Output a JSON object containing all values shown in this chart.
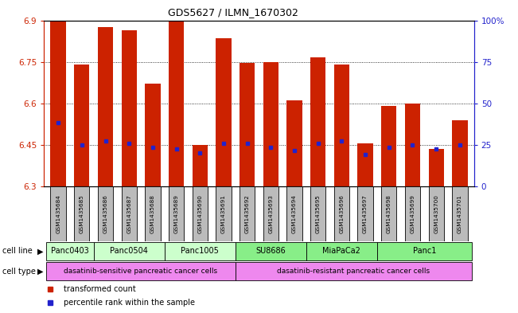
{
  "title": "GDS5627 / ILMN_1670302",
  "samples": [
    "GSM1435684",
    "GSM1435685",
    "GSM1435686",
    "GSM1435687",
    "GSM1435688",
    "GSM1435689",
    "GSM1435690",
    "GSM1435691",
    "GSM1435692",
    "GSM1435693",
    "GSM1435694",
    "GSM1435695",
    "GSM1435696",
    "GSM1435697",
    "GSM1435698",
    "GSM1435699",
    "GSM1435700",
    "GSM1435701"
  ],
  "bar_values": [
    6.895,
    6.74,
    6.875,
    6.865,
    6.67,
    6.905,
    6.45,
    6.835,
    6.745,
    6.75,
    6.61,
    6.765,
    6.74,
    6.455,
    6.59,
    6.6,
    6.435,
    6.54
  ],
  "blue_marker_values": [
    6.53,
    6.45,
    6.465,
    6.455,
    6.44,
    6.435,
    6.42,
    6.455,
    6.455,
    6.44,
    6.43,
    6.455,
    6.465,
    6.415,
    6.44,
    6.45,
    6.435,
    6.45
  ],
  "ymin": 6.3,
  "ymax": 6.9,
  "yticks_left": [
    6.3,
    6.45,
    6.6,
    6.75,
    6.9
  ],
  "yticks_right": [
    0,
    25,
    50,
    75,
    100
  ],
  "cell_lines": [
    {
      "label": "Panc0403",
      "start": 0,
      "end": 2,
      "color": "#ccffcc"
    },
    {
      "label": "Panc0504",
      "start": 2,
      "end": 5,
      "color": "#ccffcc"
    },
    {
      "label": "Panc1005",
      "start": 5,
      "end": 8,
      "color": "#ccffcc"
    },
    {
      "label": "SU8686",
      "start": 8,
      "end": 11,
      "color": "#88ee88"
    },
    {
      "label": "MiaPaCa2",
      "start": 11,
      "end": 14,
      "color": "#88ee88"
    },
    {
      "label": "Panc1",
      "start": 14,
      "end": 18,
      "color": "#88ee88"
    }
  ],
  "cell_types": [
    {
      "label": "dasatinib-sensitive pancreatic cancer cells",
      "start": 0,
      "end": 8,
      "color": "#ee88ee"
    },
    {
      "label": "dasatinib-resistant pancreatic cancer cells",
      "start": 8,
      "end": 18,
      "color": "#ee88ee"
    }
  ],
  "bar_color": "#cc2200",
  "blue_color": "#2222cc",
  "axis_left_color": "#cc2200",
  "axis_right_color": "#2222cc",
  "sample_box_color": "#bbbbbb",
  "legend_red_label": "transformed count",
  "legend_blue_label": "percentile rank within the sample",
  "cell_line_label": "cell line",
  "cell_type_label": "cell type"
}
